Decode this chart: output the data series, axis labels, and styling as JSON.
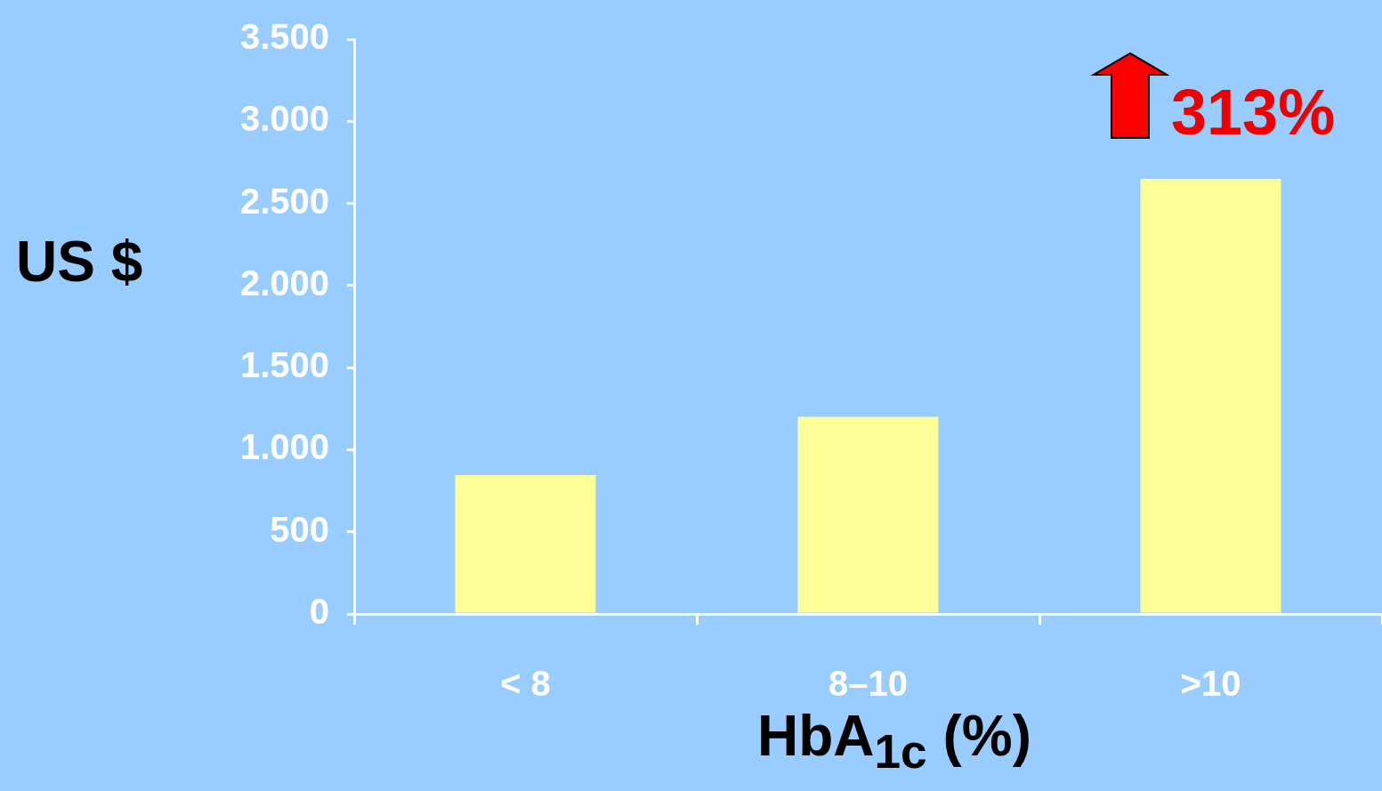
{
  "chart_data": {
    "type": "bar",
    "categories": [
      "< 8",
      "8–10",
      ">10"
    ],
    "values": [
      845,
      1200,
      2650
    ],
    "color": "#ffff99",
    "ylim": [
      0,
      3500
    ],
    "yticks": [
      {
        "value": 0,
        "label": "0"
      },
      {
        "value": 500,
        "label": "500"
      },
      {
        "value": 1000,
        "label": "1.000"
      },
      {
        "value": 1500,
        "label": "1.500"
      },
      {
        "value": 2000,
        "label": "2.000"
      },
      {
        "value": 2500,
        "label": "2.500"
      },
      {
        "value": 3000,
        "label": "3.000"
      },
      {
        "value": 3500,
        "label": "3.500"
      }
    ],
    "xlabel": "HbA$_{1c}$  (%)",
    "ylabel": "US $",
    "annotations": [
      "313%"
    ],
    "grid": false,
    "legend": false
  }
}
